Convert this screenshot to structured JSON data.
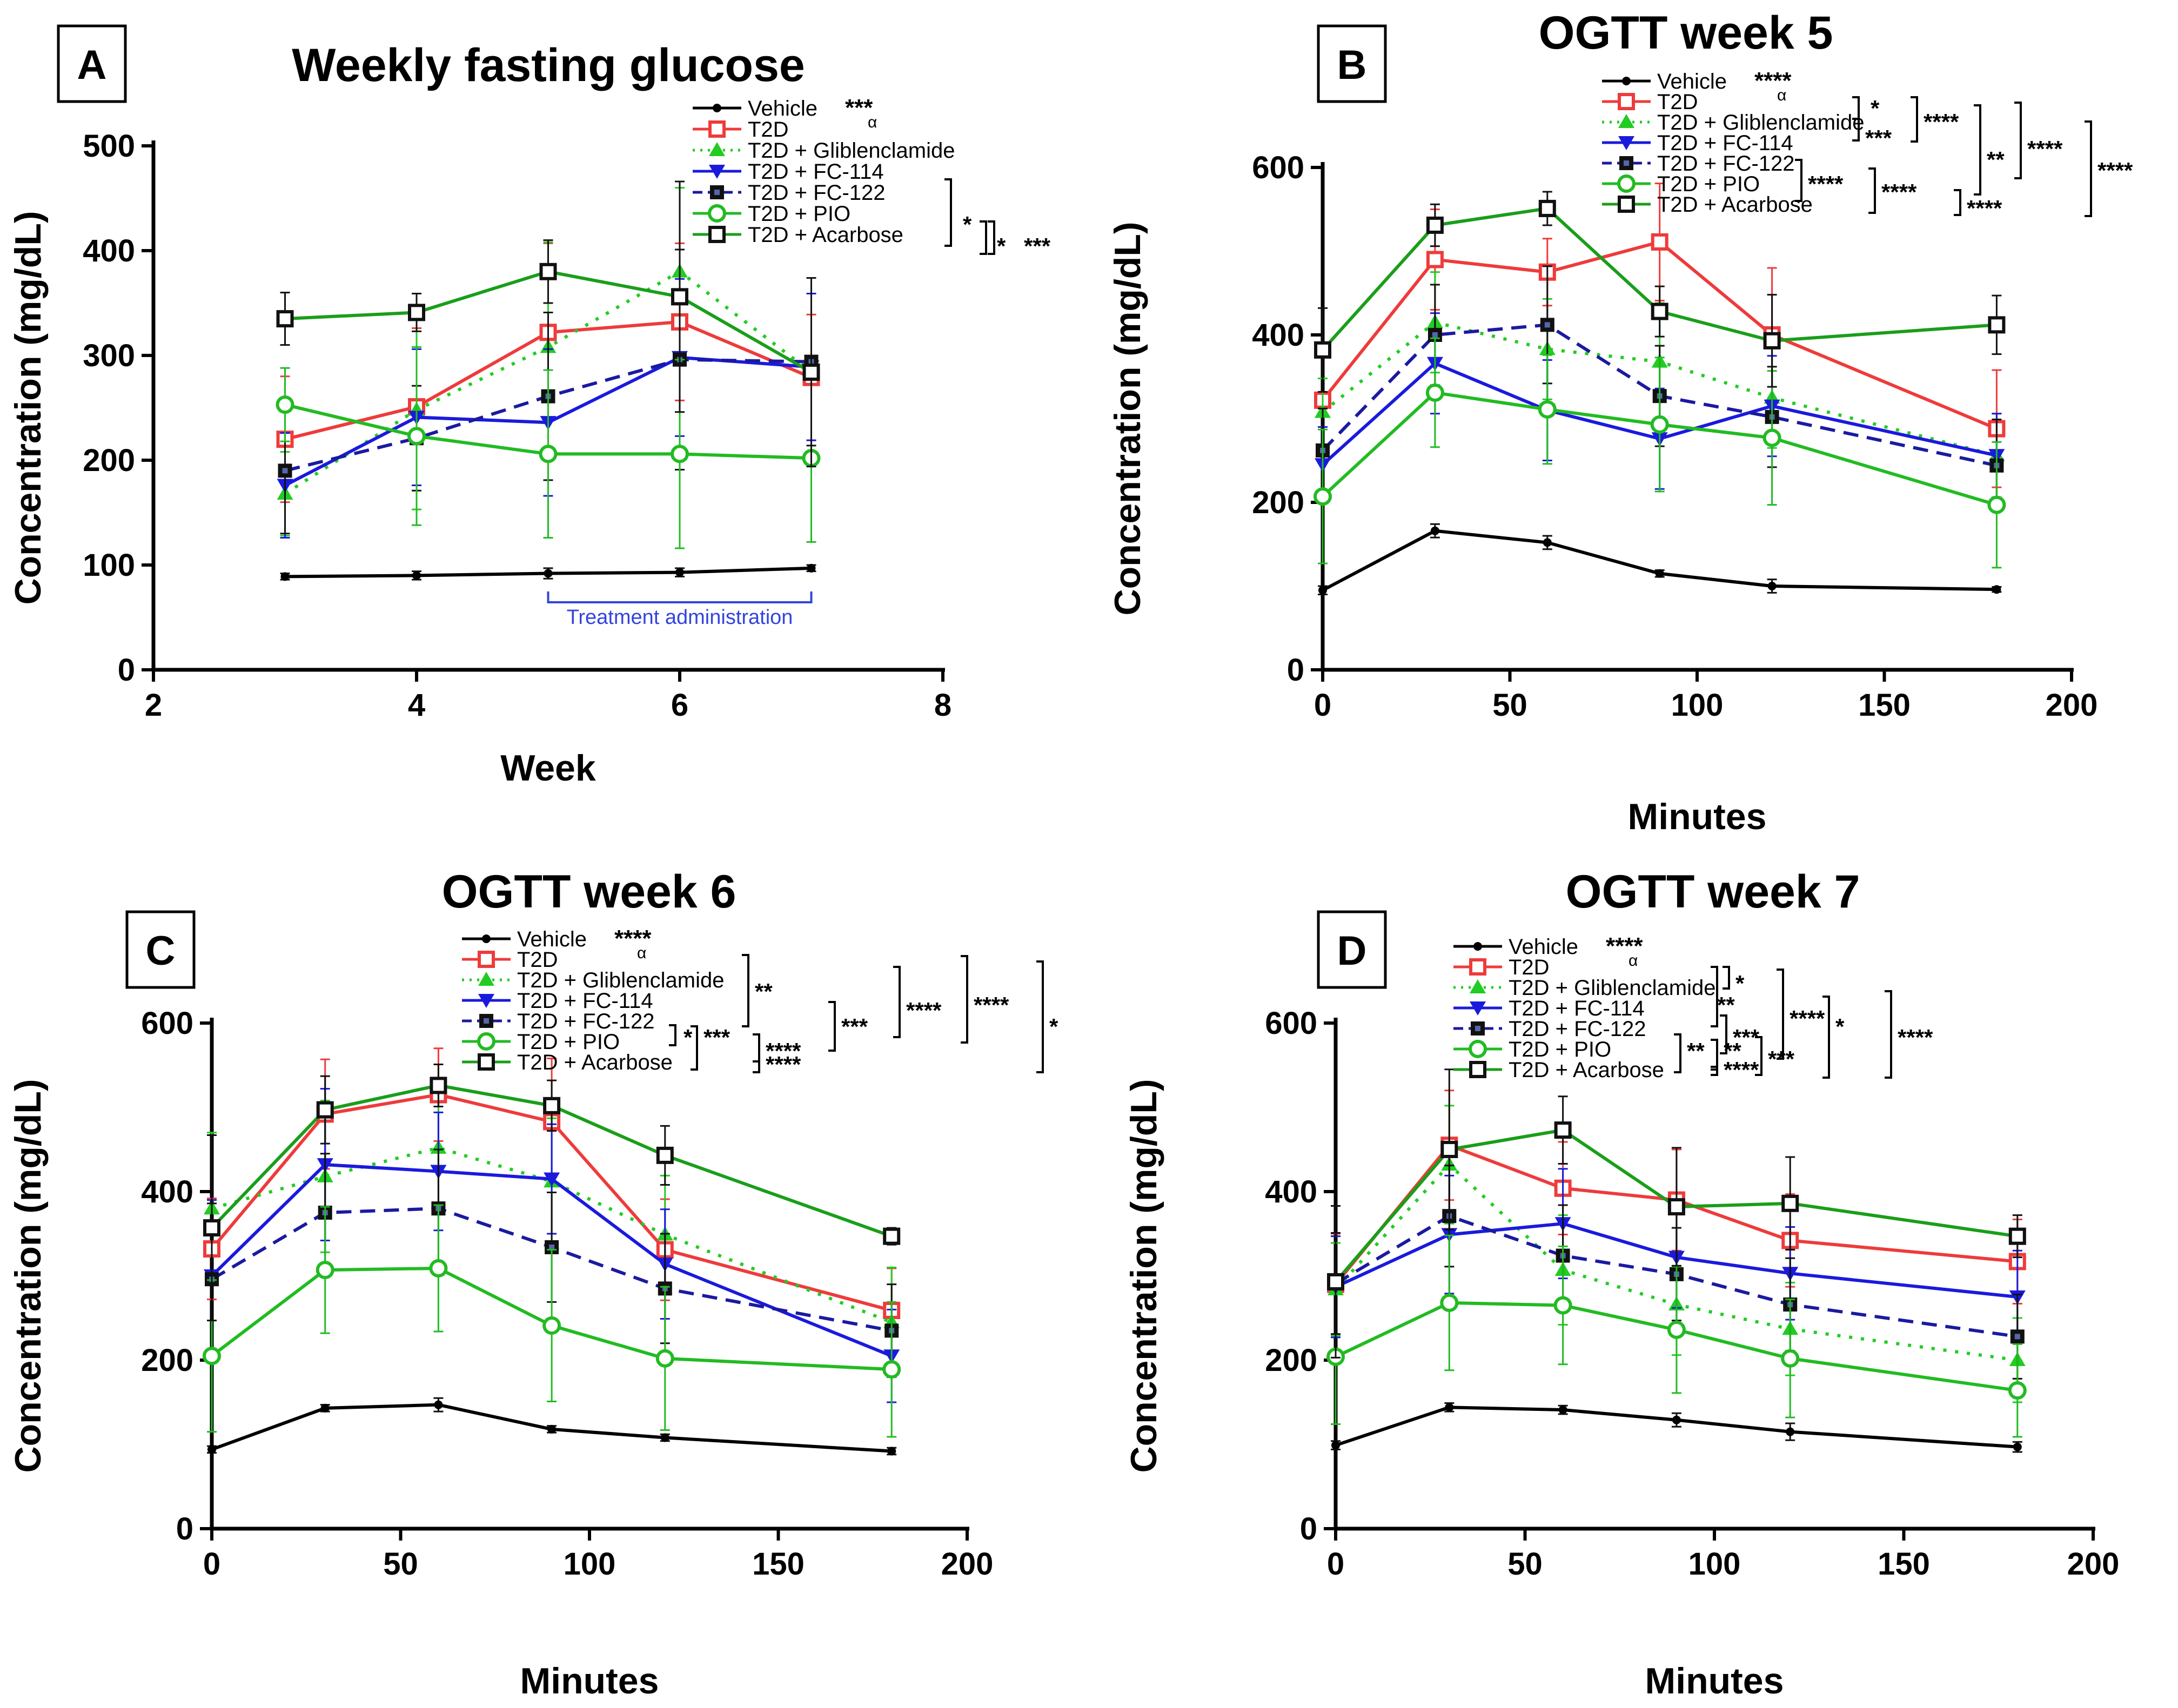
{
  "colors": {
    "vehicle": "#000000",
    "t2d": "#ee3b3b",
    "glib": "#22cc22",
    "fc114": "#1a1add",
    "fc122": "#1a1aa0",
    "pio": "#22bb22",
    "acarbose": "#1a9e1a",
    "treatment": "#3344dd"
  },
  "series_names": [
    "Vehicle",
    "T2D",
    "T2D + Gliblenclamide",
    "T2D + FC-114",
    "T2D + FC-122",
    "T2D + PIO",
    "T2D + Acarbose"
  ],
  "series_keys": [
    "vehicle",
    "t2d",
    "glib",
    "fc114",
    "fc122",
    "pio",
    "acarbose"
  ],
  "chart_data": [
    {
      "panel": "A",
      "type": "line",
      "title": "Weekly fasting glucose",
      "xlabel": "Week",
      "ylabel": "Concentration (mg/dL)",
      "xlim": [
        2,
        8
      ],
      "ylim": [
        0,
        500
      ],
      "xticks": [
        "2",
        "4",
        "6",
        "8"
      ],
      "yticks": [
        "0",
        "100",
        "200",
        "300",
        "400",
        "500"
      ],
      "x": [
        3,
        4,
        5,
        6,
        7
      ],
      "vehicle_mark": "***",
      "vehicle_sub": "α",
      "annotation": "Treatment administration",
      "annotation_range": [
        5,
        7
      ],
      "series": [
        {
          "name": "Vehicle",
          "values": [
            89,
            90,
            92,
            93,
            97
          ],
          "errors": [
            3,
            4,
            5,
            4,
            3
          ]
        },
        {
          "name": "T2D",
          "values": [
            220,
            251,
            322,
            332,
            279
          ],
          "errors": [
            60,
            75,
            85,
            75,
            60
          ]
        },
        {
          "name": "T2D + Gliblenclamide",
          "values": [
            168,
            248,
            308,
            380,
            284
          ],
          "errors": [
            40,
            95,
            100,
            80,
            90
          ]
        },
        {
          "name": "T2D + FC-114",
          "values": [
            176,
            241,
            236,
            298,
            289
          ],
          "errors": [
            50,
            65,
            70,
            75,
            70
          ]
        },
        {
          "name": "T2D + FC-122",
          "values": [
            190,
            221,
            261,
            296,
            294
          ],
          "errors": [
            60,
            50,
            80,
            105,
            80
          ]
        },
        {
          "name": "T2D + PIO",
          "values": [
            253,
            223,
            206,
            206,
            202
          ],
          "errors": [
            35,
            85,
            80,
            90,
            80
          ]
        },
        {
          "name": "T2D + Acarbose",
          "values": [
            335,
            341,
            380,
            356,
            284
          ],
          "errors": [
            25,
            18,
            30,
            110,
            90
          ]
        }
      ],
      "brackets": [
        "*",
        "*",
        "***"
      ]
    },
    {
      "panel": "B",
      "type": "line",
      "title": "OGTT week 5",
      "xlabel": "Minutes",
      "ylabel": "Concentration (mg/dL)",
      "xlim": [
        0,
        200
      ],
      "ylim": [
        0,
        600
      ],
      "xticks": [
        "0",
        "50",
        "100",
        "150",
        "200"
      ],
      "yticks": [
        "0",
        "200",
        "400",
        "600"
      ],
      "x": [
        0,
        30,
        60,
        90,
        120,
        180
      ],
      "vehicle_mark": "****",
      "vehicle_sub": "α",
      "series": [
        {
          "name": "Vehicle",
          "values": [
            95,
            166,
            152,
            115,
            100,
            96
          ],
          "errors": [
            5,
            8,
            8,
            4,
            8,
            3
          ]
        },
        {
          "name": "T2D",
          "values": [
            322,
            490,
            475,
            511,
            400,
            288
          ],
          "errors": [
            60,
            60,
            40,
            70,
            80,
            70
          ]
        },
        {
          "name": "T2D + Gliblenclamide",
          "values": [
            308,
            415,
            383,
            368,
            325,
            256
          ],
          "errors": [
            40,
            60,
            60,
            70,
            60,
            50
          ]
        },
        {
          "name": "T2D + FC-114",
          "values": [
            245,
            366,
            310,
            276,
            315,
            256
          ],
          "errors": [
            45,
            60,
            60,
            60,
            60,
            50
          ]
        },
        {
          "name": "T2D + FC-122",
          "values": [
            262,
            400,
            412,
            327,
            302,
            244
          ],
          "errors": [
            50,
            60,
            70,
            60,
            60,
            55
          ]
        },
        {
          "name": "T2D + PIO",
          "values": [
            207,
            331,
            311,
            293,
            277,
            197
          ],
          "errors": [
            80,
            65,
            65,
            80,
            80,
            75
          ]
        },
        {
          "name": "T2D + Acarbose",
          "values": [
            382,
            531,
            551,
            428,
            393,
            412
          ],
          "errors": [
            50,
            25,
            20,
            30,
            55,
            35
          ]
        }
      ],
      "brackets": [
        "*",
        "***",
        "****",
        "**",
        "****",
        "****",
        "****",
        "****",
        "****"
      ]
    },
    {
      "panel": "C",
      "type": "line",
      "title": "OGTT week 6",
      "xlabel": "Minutes",
      "ylabel": "Concentration (mg/dL)",
      "xlim": [
        0,
        200
      ],
      "ylim": [
        0,
        600
      ],
      "xticks": [
        "0",
        "50",
        "100",
        "150",
        "200"
      ],
      "yticks": [
        "0",
        "200",
        "400",
        "600"
      ],
      "x": [
        0,
        30,
        60,
        90,
        120,
        180
      ],
      "vehicle_mark": "****",
      "vehicle_sub": "α",
      "series": [
        {
          "name": "Vehicle",
          "values": [
            94,
            143,
            147,
            118,
            108,
            92
          ],
          "errors": [
            4,
            4,
            8,
            4,
            4,
            4
          ]
        },
        {
          "name": "T2D",
          "values": [
            332,
            492,
            515,
            483,
            331,
            259
          ],
          "errors": [
            60,
            65,
            55,
            75,
            60,
            50
          ]
        },
        {
          "name": "T2D + Gliblenclamide",
          "values": [
            380,
            418,
            452,
            412,
            349,
            245
          ],
          "errors": [
            90,
            90,
            70,
            75,
            70,
            65
          ]
        },
        {
          "name": "T2D + FC-114",
          "values": [
            300,
            432,
            424,
            415,
            314,
            205
          ],
          "errors": [
            90,
            90,
            70,
            65,
            65,
            55
          ]
        },
        {
          "name": "T2D + FC-122",
          "values": [
            296,
            375,
            380,
            334,
            285,
            235
          ],
          "errors": [
            90,
            70,
            70,
            65,
            65,
            55
          ]
        },
        {
          "name": "T2D + PIO",
          "values": [
            205,
            307,
            309,
            241,
            202,
            189
          ],
          "errors": [
            90,
            75,
            75,
            90,
            85,
            80
          ]
        },
        {
          "name": "T2D + Acarbose",
          "values": [
            357,
            497,
            526,
            502,
            443,
            347
          ],
          "errors": [
            110,
            40,
            25,
            30,
            35,
            10
          ]
        }
      ],
      "brackets": [
        "**",
        "*",
        "***",
        "****",
        "****",
        "***",
        "****",
        "****",
        "*"
      ]
    },
    {
      "panel": "D",
      "type": "line",
      "title": "OGTT week 7",
      "xlabel": "Minutes",
      "ylabel": "Concentration (mg/dL)",
      "xlim": [
        0,
        200
      ],
      "ylim": [
        0,
        600
      ],
      "xticks": [
        "0",
        "50",
        "100",
        "150",
        "200"
      ],
      "yticks": [
        "0",
        "200",
        "400",
        "600"
      ],
      "x": [
        0,
        30,
        60,
        90,
        120,
        180
      ],
      "vehicle_mark": "****",
      "vehicle_sub": "α",
      "series": [
        {
          "name": "Vehicle",
          "values": [
            99,
            144,
            141,
            129,
            115,
            97
          ],
          "errors": [
            5,
            5,
            5,
            8,
            10,
            6
          ]
        },
        {
          "name": "T2D",
          "values": [
            290,
            455,
            404,
            390,
            342,
            317
          ],
          "errors": [
            60,
            65,
            55,
            60,
            55,
            50
          ]
        },
        {
          "name": "T2D + Gliblenclamide",
          "values": [
            284,
            432,
            307,
            266,
            237,
            200
          ],
          "errors": [
            55,
            70,
            65,
            60,
            55,
            50
          ]
        },
        {
          "name": "T2D + FC-114",
          "values": [
            287,
            349,
            362,
            322,
            303,
            275
          ],
          "errors": [
            60,
            70,
            65,
            60,
            55,
            55
          ]
        },
        {
          "name": "T2D + FC-122",
          "values": [
            291,
            371,
            324,
            302,
            266,
            228
          ],
          "errors": [
            60,
            60,
            60,
            55,
            55,
            50
          ]
        },
        {
          "name": "T2D + PIO",
          "values": [
            204,
            268,
            265,
            236,
            202,
            164
          ],
          "errors": [
            80,
            80,
            70,
            75,
            70,
            55
          ]
        },
        {
          "name": "T2D + Acarbose",
          "values": [
            293,
            450,
            473,
            382,
            386,
            347
          ],
          "errors": [
            90,
            95,
            40,
            70,
            55,
            25
          ]
        }
      ],
      "brackets": [
        "**",
        "*",
        "****",
        "***",
        "**",
        "**",
        "****",
        "***",
        "*",
        "****"
      ]
    }
  ]
}
